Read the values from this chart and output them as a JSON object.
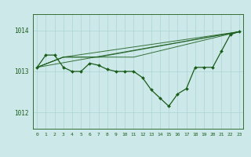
{
  "background_color": "#cce8e8",
  "grid_color": "#aad4d4",
  "line_color": "#1a5c1a",
  "text_color": "#1a5c1a",
  "xlim": [
    -0.5,
    23.5
  ],
  "ylim": [
    1011.6,
    1014.4
  ],
  "yticks": [
    1012,
    1013,
    1014
  ],
  "xticks": [
    0,
    1,
    2,
    3,
    4,
    5,
    6,
    7,
    8,
    9,
    10,
    11,
    12,
    13,
    14,
    15,
    16,
    17,
    18,
    19,
    20,
    21,
    22,
    23
  ],
  "main_line": [
    [
      0,
      1013.1
    ],
    [
      1,
      1013.4
    ],
    [
      2,
      1013.4
    ],
    [
      3,
      1013.1
    ],
    [
      4,
      1013.0
    ],
    [
      5,
      1013.0
    ],
    [
      6,
      1013.2
    ],
    [
      7,
      1013.15
    ],
    [
      8,
      1013.05
    ],
    [
      9,
      1013.0
    ],
    [
      10,
      1013.0
    ],
    [
      11,
      1013.0
    ],
    [
      12,
      1012.85
    ],
    [
      13,
      1012.55
    ],
    [
      14,
      1012.35
    ],
    [
      15,
      1012.15
    ],
    [
      16,
      1012.45
    ],
    [
      17,
      1012.58
    ],
    [
      18,
      1013.1
    ],
    [
      19,
      1013.1
    ],
    [
      20,
      1013.1
    ],
    [
      21,
      1013.5
    ],
    [
      22,
      1013.9
    ],
    [
      23,
      1013.97
    ]
  ],
  "forecast_lines": [
    [
      [
        0,
        1013.1
      ],
      [
        23,
        1013.97
      ]
    ],
    [
      [
        0,
        1013.1
      ],
      [
        3,
        1013.35
      ],
      [
        23,
        1013.97
      ]
    ],
    [
      [
        0,
        1013.1
      ],
      [
        3,
        1013.35
      ],
      [
        7,
        1013.35
      ],
      [
        23,
        1013.97
      ]
    ],
    [
      [
        0,
        1013.1
      ],
      [
        3,
        1013.35
      ],
      [
        7,
        1013.35
      ],
      [
        11,
        1013.35
      ],
      [
        23,
        1013.97
      ]
    ]
  ],
  "figsize": [
    3.2,
    2.0
  ],
  "dpi": 100
}
